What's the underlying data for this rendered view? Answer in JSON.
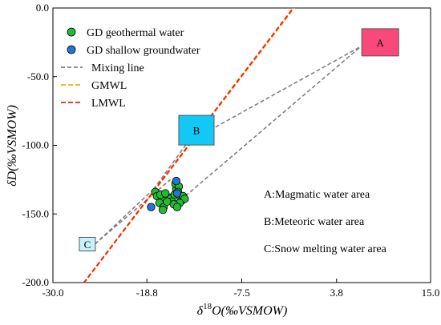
{
  "chart_data": {
    "type": "scatter",
    "xlabel": {
      "delta": "δ",
      "sup": "18",
      "main": "O(‰VSMOW)"
    },
    "ylabel": "δD(‰VSMOW)",
    "xlim": [
      -30.0,
      15.0
    ],
    "ylim": [
      -200.0,
      0.0
    ],
    "x_ticks": [
      {
        "value": -30.0,
        "label": "-30.0"
      },
      {
        "value": -18.8,
        "label": "-18.8"
      },
      {
        "value": -7.5,
        "label": "-7.5"
      },
      {
        "value": 3.8,
        "label": "3.8"
      },
      {
        "value": 15.0,
        "label": "15.0"
      }
    ],
    "y_ticks": [
      {
        "value": 0.0,
        "label": "0.0"
      },
      {
        "value": -50.0,
        "label": "-50.0"
      },
      {
        "value": -100.0,
        "label": "-100.0"
      },
      {
        "value": -150.0,
        "label": "-150.0"
      },
      {
        "value": -200.0,
        "label": "-200.0"
      }
    ],
    "legend_position": "top-left",
    "series": [
      {
        "name": "GD geothermal water",
        "kind": "points",
        "color": "#22bb33",
        "points": [
          [
            -17.8,
            -134
          ],
          [
            -17.6,
            -137
          ],
          [
            -17.0,
            -140
          ],
          [
            -17.3,
            -142
          ],
          [
            -16.8,
            -145
          ],
          [
            -16.9,
            -147
          ],
          [
            -16.2,
            -138
          ],
          [
            -16.0,
            -139
          ],
          [
            -15.8,
            -141
          ],
          [
            -15.5,
            -136
          ],
          [
            -15.3,
            -132
          ],
          [
            -15.4,
            -128
          ],
          [
            -15.0,
            -130
          ],
          [
            -15.1,
            -134
          ],
          [
            -14.8,
            -138
          ],
          [
            -14.6,
            -140
          ],
          [
            -14.5,
            -137
          ],
          [
            -14.3,
            -139
          ],
          [
            -14.9,
            -142
          ],
          [
            -15.6,
            -143
          ],
          [
            -16.4,
            -141
          ],
          [
            -17.2,
            -136
          ],
          [
            -16.6,
            -135
          ],
          [
            -15.2,
            -145
          ]
        ]
      },
      {
        "name": "GD shallow groundwater",
        "kind": "points",
        "color": "#1f77d4",
        "points": [
          [
            -18.3,
            -145
          ],
          [
            -15.3,
            -126
          ],
          [
            -15.2,
            -135
          ]
        ]
      },
      {
        "name": "Mixing line",
        "kind": "segments",
        "color": "#808080",
        "segments": [
          [
            [
              -25.0,
              -172
            ],
            [
              -18.0,
              -132
            ]
          ],
          [
            [
              -25.0,
              -172
            ],
            [
              -16.0,
              -125
            ]
          ],
          [
            [
              -18.0,
              -132
            ],
            [
              -12.9,
              -89
            ]
          ],
          [
            [
              -11.3,
              -89
            ],
            [
              6.7,
              -28
            ]
          ],
          [
            [
              -14.8,
              -140
            ],
            [
              6.7,
              -28
            ]
          ]
        ]
      },
      {
        "name": "GMWL",
        "kind": "line",
        "color": "#ffa500",
        "slope": 8,
        "intercept": 10
      },
      {
        "name": "LMWL",
        "kind": "line",
        "color": "#ee1c1c",
        "slope": 8.02,
        "intercept": 11.0
      }
    ],
    "areas": [
      {
        "label": "A",
        "x": 9.0,
        "y": -25.0,
        "color": "#f8497a"
      },
      {
        "label": "B",
        "x": -12.9,
        "y": -89.0,
        "color": "#14c8f5"
      },
      {
        "label": "C",
        "x": -25.9,
        "y": -172.0,
        "color": "#c8f2fb"
      }
    ],
    "annotations": [
      "A:Magmatic water area",
      "B:Meteoric water area",
      "C:Snow melting water area"
    ]
  }
}
